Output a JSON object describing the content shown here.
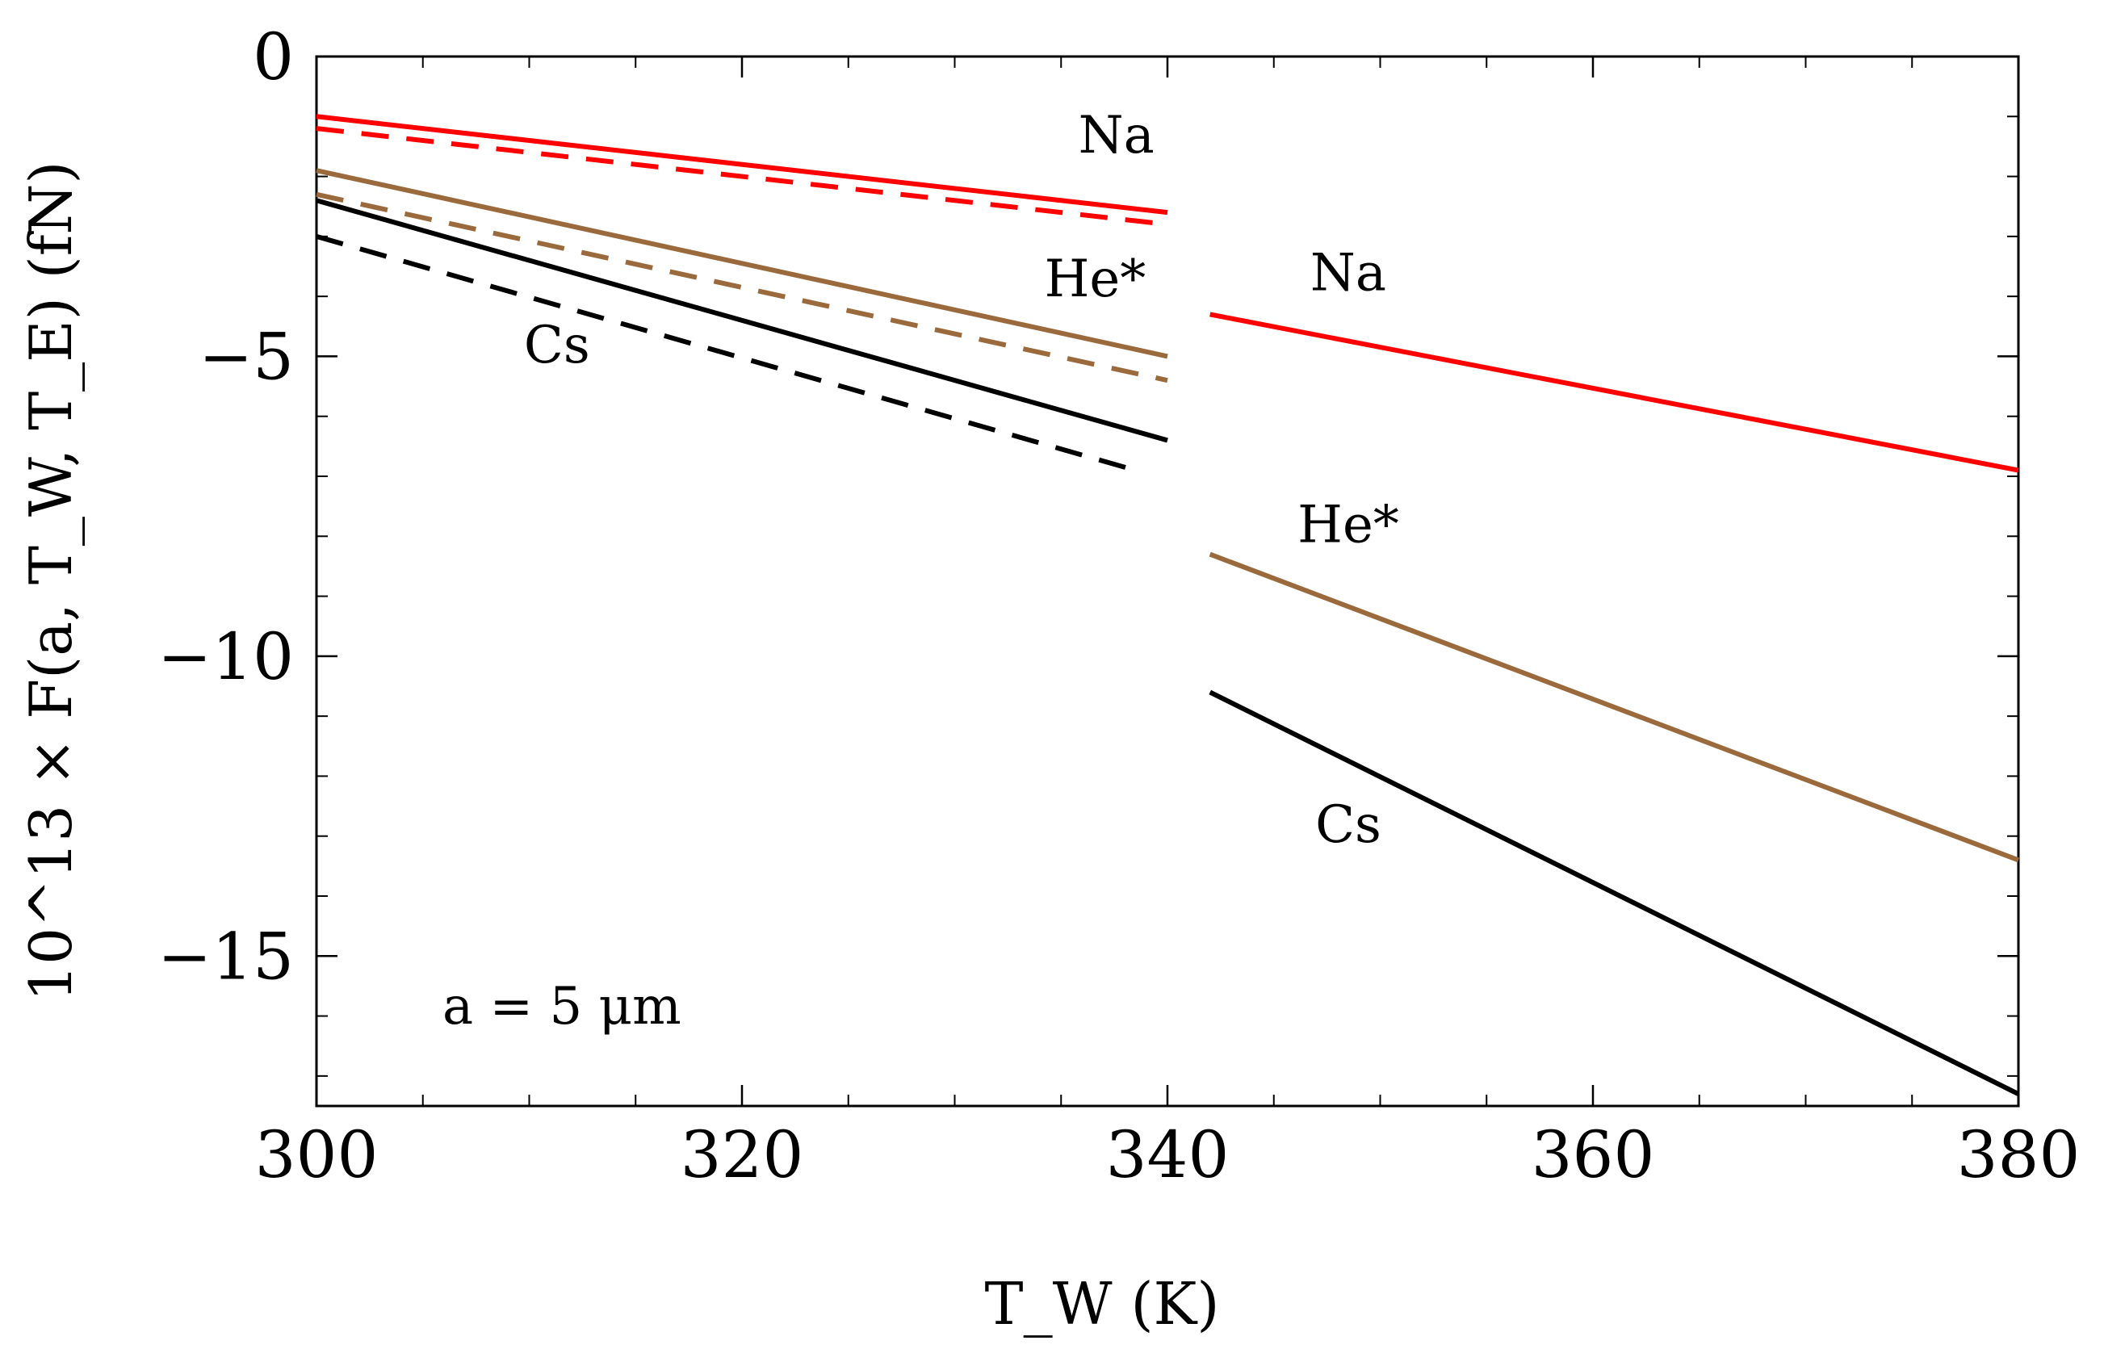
{
  "chart_data": {
    "type": "line",
    "title": "",
    "xlabel": "T_W (K)",
    "ylabel": "10^13 × F(a, T_W, T_E) (fN)",
    "xlim": [
      300,
      380
    ],
    "ylim": [
      -17.5,
      0
    ],
    "x_ticks": [
      300,
      320,
      340,
      360,
      380
    ],
    "y_ticks": [
      0,
      -5,
      -10,
      -15
    ],
    "x_tick_labels": [
      "300",
      "320",
      "340",
      "360",
      "380"
    ],
    "y_tick_labels": [
      "0",
      "−5",
      "−10",
      "−15"
    ],
    "annotation": "a = 5 μm",
    "grid": false,
    "series": [
      {
        "name": "Na",
        "color": "#ff0000",
        "style": "solid",
        "x": [
          300,
          340
        ],
        "y": [
          -1.0,
          -2.6
        ]
      },
      {
        "name": "Na",
        "color": "#ff0000",
        "style": "dashed",
        "x": [
          300,
          340
        ],
        "y": [
          -1.2,
          -2.8
        ]
      },
      {
        "name": "He*",
        "color": "#9b6a3c",
        "style": "solid",
        "x": [
          300,
          340
        ],
        "y": [
          -1.9,
          -5.0
        ]
      },
      {
        "name": "He*",
        "color": "#9b6a3c",
        "style": "dashed",
        "x": [
          300,
          340
        ],
        "y": [
          -2.3,
          -5.4
        ]
      },
      {
        "name": "Cs",
        "color": "#000000",
        "style": "solid",
        "x": [
          300,
          340
        ],
        "y": [
          -2.4,
          -6.4
        ]
      },
      {
        "name": "Cs",
        "color": "#000000",
        "style": "dashed",
        "x": [
          300,
          338.5
        ],
        "y": [
          -3.0,
          -6.9
        ]
      },
      {
        "name": "Na",
        "color": "#ff0000",
        "style": "solid",
        "x": [
          342,
          380
        ],
        "y": [
          -4.3,
          -6.9
        ]
      },
      {
        "name": "He*",
        "color": "#9b6a3c",
        "style": "solid",
        "x": [
          342,
          380
        ],
        "y": [
          -8.3,
          -13.4
        ]
      },
      {
        "name": "Cs",
        "color": "#000000",
        "style": "solid",
        "x": [
          342,
          380
        ],
        "y": [
          -10.6,
          -17.3
        ]
      }
    ],
    "labels": [
      {
        "text": "Na",
        "x": 337.6,
        "y": -1.6
      },
      {
        "text": "He*",
        "x": 336.6,
        "y": -4.0
      },
      {
        "text": "Cs",
        "x": 311.3,
        "y": -5.1
      },
      {
        "text": "Na",
        "x": 348.5,
        "y": -3.9
      },
      {
        "text": "He*",
        "x": 348.5,
        "y": -8.1
      },
      {
        "text": "Cs",
        "x": 348.5,
        "y": -13.1
      }
    ]
  }
}
